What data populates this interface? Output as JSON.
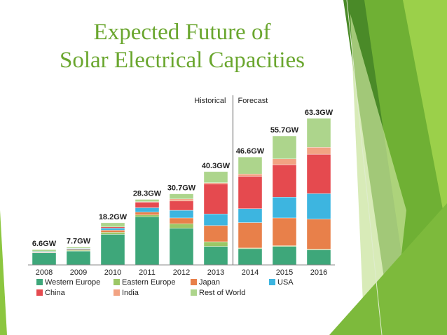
{
  "slide": {
    "title_line1": "Expected Future of",
    "title_line2": "Solar Electrical Capacities"
  },
  "chart_data": {
    "type": "bar",
    "stacked": true,
    "title": "",
    "xlabel": "",
    "ylabel": "",
    "ylim": [
      0,
      66
    ],
    "grid": false,
    "legend_position": "bottom",
    "annotations": {
      "historical_label": "Historical",
      "forecast_label": "Forecast",
      "divider_after_category": "2013"
    },
    "categories": [
      "2008",
      "2009",
      "2010",
      "2011",
      "2012",
      "2013",
      "2014",
      "2015",
      "2016"
    ],
    "totals_labels": [
      "6.6GW",
      "7.7GW",
      "18.2GW",
      "28.3GW",
      "30.7GW",
      "40.3GW",
      "46.6GW",
      "55.7GW",
      "63.3GW"
    ],
    "series": [
      {
        "name": "Western Europe",
        "color": "#3ea77a",
        "values": [
          5.2,
          6.0,
          13.2,
          20.8,
          15.8,
          8.0,
          7.0,
          8.0,
          6.5
        ]
      },
      {
        "name": "Eastern Europe",
        "color": "#9cc766",
        "values": [
          0.1,
          0.3,
          0.9,
          0.8,
          2.0,
          2.0,
          0.3,
          0.3,
          0.3
        ]
      },
      {
        "name": "Japan",
        "color": "#e8804a",
        "values": [
          0.2,
          0.4,
          0.9,
          1.2,
          2.5,
          7.0,
          11.0,
          12.0,
          13.0
        ]
      },
      {
        "name": "USA",
        "color": "#3db5e0",
        "values": [
          0.3,
          0.4,
          0.9,
          1.9,
          3.3,
          5.0,
          6.0,
          9.0,
          11.0
        ]
      },
      {
        "name": "China",
        "color": "#e54a4f",
        "values": [
          0.0,
          0.1,
          0.5,
          2.4,
          4.0,
          13.0,
          14.0,
          14.0,
          17.0
        ]
      },
      {
        "name": "India",
        "color": "#f2a383",
        "values": [
          0.0,
          0.0,
          0.0,
          0.2,
          0.9,
          0.5,
          1.0,
          2.5,
          3.0
        ]
      },
      {
        "name": "Rest of World",
        "color": "#add58c",
        "values": [
          0.8,
          0.5,
          1.8,
          1.0,
          2.2,
          4.8,
          7.3,
          9.9,
          12.5
        ]
      }
    ]
  }
}
